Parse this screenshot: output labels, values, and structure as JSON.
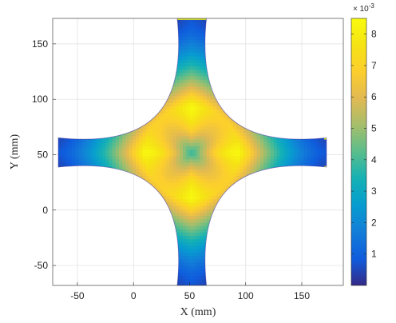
{
  "chart_data": {
    "type": "heatmap",
    "title": "",
    "xlabel": "X (mm)",
    "ylabel": "Y (mm)",
    "xlim": [
      -72,
      187
    ],
    "ylim": [
      -68,
      173
    ],
    "grid": true,
    "x_ticks": [
      -50,
      0,
      50,
      100,
      150
    ],
    "y_ticks": [
      -50,
      0,
      50,
      100,
      150
    ],
    "x_tick_labels": [
      "-50",
      "0",
      "50",
      "100",
      "150"
    ],
    "y_tick_labels": [
      "-50",
      "0",
      "50",
      "100",
      "150"
    ],
    "colormap": "parula",
    "colorbar": {
      "location": "right",
      "clim": [
        0,
        0.0085
      ],
      "exponent_label": "× 10-3",
      "exponent_base": "× 10",
      "exponent_power": "-3",
      "tick_values": [
        1,
        2,
        3,
        4,
        5,
        6,
        7,
        8
      ],
      "tick_labels": [
        "1",
        "2",
        "3",
        "4",
        "5",
        "6",
        "7",
        "8"
      ]
    },
    "shape": {
      "description": "cross-shaped (plus) domain with concave arms",
      "center": [
        52,
        52
      ],
      "arm_ends": {
        "left_x": -67,
        "right_x": 172,
        "bottom_y": -68,
        "top_y": 173
      },
      "arm_end_half_width": 13,
      "center_value": 0.0038,
      "peak_value": 0.0084,
      "arm_tip_value": 0.0008
    },
    "field_samples": [
      {
        "x": 52,
        "y": 52,
        "value": 0.0038
      },
      {
        "x": 52,
        "y": 85,
        "value": 0.0065
      },
      {
        "x": 52,
        "y": 105,
        "value": 0.0082
      },
      {
        "x": 52,
        "y": 140,
        "value": 0.0045
      },
      {
        "x": 52,
        "y": 170,
        "value": 0.001
      },
      {
        "x": 85,
        "y": 52,
        "value": 0.0065
      },
      {
        "x": 105,
        "y": 52,
        "value": 0.0082
      },
      {
        "x": 140,
        "y": 52,
        "value": 0.0045
      },
      {
        "x": 170,
        "y": 52,
        "value": 0.001
      },
      {
        "x": 20,
        "y": 52,
        "value": 0.008
      },
      {
        "x": 0,
        "y": 52,
        "value": 0.0076
      },
      {
        "x": -35,
        "y": 52,
        "value": 0.004
      },
      {
        "x": -65,
        "y": 52,
        "value": 0.0008
      },
      {
        "x": 52,
        "y": 20,
        "value": 0.008
      },
      {
        "x": 52,
        "y": 0,
        "value": 0.0078
      },
      {
        "x": 52,
        "y": -35,
        "value": 0.004
      },
      {
        "x": 52,
        "y": -65,
        "value": 0.001
      }
    ]
  }
}
